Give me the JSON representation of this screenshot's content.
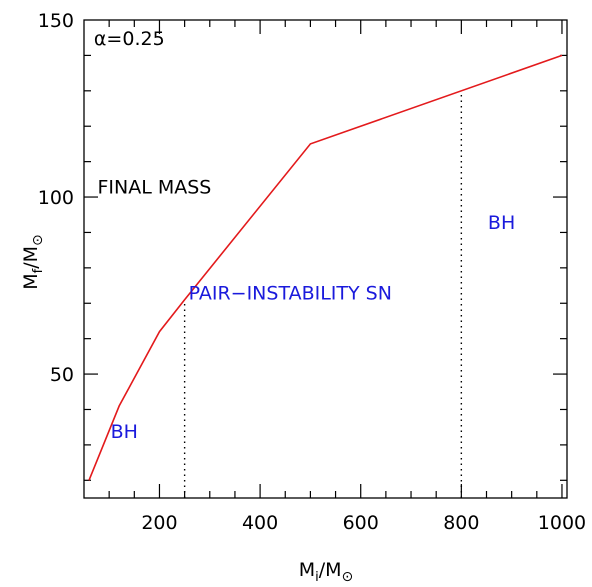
{
  "chart_data": {
    "type": "line",
    "xlim": [
      50,
      1010
    ],
    "ylim": [
      15,
      150
    ],
    "x_ticks_major": [
      200,
      400,
      600,
      800,
      1000
    ],
    "x_tick_labels": [
      "200",
      "400",
      "600",
      "800",
      "1000"
    ],
    "y_ticks_major": [
      50,
      100,
      150
    ],
    "y_tick_labels": [
      "50",
      "100",
      "150"
    ],
    "xlabel": {
      "main": "M",
      "sub": "i",
      "sep": "/",
      "main2": "M",
      "sun": "⊙"
    },
    "ylabel": {
      "main": "M",
      "sub": "f",
      "sep": "/",
      "main2": "M",
      "sun": "⊙"
    },
    "series": [
      {
        "color": "#e31a1c",
        "x": [
          60,
          120,
          200,
          250,
          500,
          1000
        ],
        "y": [
          20,
          41,
          62,
          71,
          115,
          140
        ]
      }
    ],
    "vlines": [
      {
        "x": 250,
        "y_from": 15,
        "y_to": 71,
        "style": "dotted"
      },
      {
        "x": 800,
        "y_from": 15,
        "y_to": 130,
        "style": "dotted"
      }
    ],
    "annotations": [
      {
        "text": "α=0.25",
        "x": 140,
        "y": 143,
        "color": "#000000"
      },
      {
        "text": "FINAL MASS",
        "x": 190,
        "y": 101,
        "color": "#000000"
      },
      {
        "text": "PAIR−INSTABILITY SN",
        "x": 460,
        "y": 71,
        "color": "#1a1adc"
      },
      {
        "text": "BH",
        "x": 880,
        "y": 91,
        "color": "#1a1adc"
      },
      {
        "text": "BH",
        "x": 130,
        "y": 32,
        "color": "#1a1adc"
      }
    ]
  }
}
